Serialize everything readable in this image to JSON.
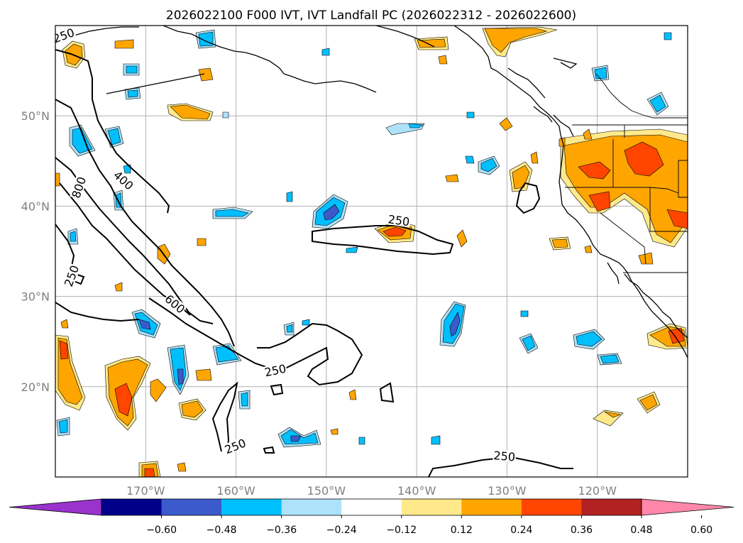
{
  "title": "2026022100 F000 IVT, IVT Landfall PC (2026022312 - 2026022600)",
  "map": {
    "lon_range": [
      -180,
      -110
    ],
    "lat_range": [
      10,
      60
    ],
    "lat_ticks": [
      {
        "value": 20,
        "label": "20°N"
      },
      {
        "value": 30,
        "label": "30°N"
      },
      {
        "value": 40,
        "label": "40°N"
      },
      {
        "value": 50,
        "label": "50°N"
      }
    ],
    "lon_ticks": [
      {
        "value": -170,
        "label": "170°W"
      },
      {
        "value": -160,
        "label": "160°W"
      },
      {
        "value": -150,
        "label": "150°W"
      },
      {
        "value": -140,
        "label": "140°W"
      },
      {
        "value": -130,
        "label": "130°W"
      },
      {
        "value": -120,
        "label": "120°W"
      }
    ]
  },
  "contour_labels": [
    {
      "text": "250",
      "lon": -179.0,
      "lat": 58.7,
      "rot": -20
    },
    {
      "text": "400",
      "lon": -172.6,
      "lat": 42.7,
      "rot": 42
    },
    {
      "text": "800",
      "lon": -177.2,
      "lat": 42.0,
      "rot": -72
    },
    {
      "text": "250",
      "lon": -178.0,
      "lat": 32.2,
      "rot": -70
    },
    {
      "text": "600",
      "lon": -166.9,
      "lat": 29.0,
      "rot": 40
    },
    {
      "text": "250",
      "lon": -142.0,
      "lat": 38.2,
      "rot": 8
    },
    {
      "text": "250",
      "lon": -155.6,
      "lat": 21.6,
      "rot": -12
    },
    {
      "text": "250",
      "lon": -160.0,
      "lat": 13.2,
      "rot": -22
    },
    {
      "text": "250",
      "lon": -130.3,
      "lat": 12.1,
      "rot": 5
    }
  ],
  "colorbar": {
    "levels": [
      "−0.60",
      "−0.48",
      "−0.36",
      "−0.24",
      "−0.12",
      "0.12",
      "0.24",
      "0.36",
      "0.48",
      "0.60"
    ],
    "colors": [
      "#9933cc",
      "#00008b",
      "#3b5bcc",
      "#00bfff",
      "#aee2fa",
      "#ffffff",
      "#ffe98a",
      "#ffa500",
      "#ff4500",
      "#b22222",
      "#ff88aa"
    ]
  }
}
